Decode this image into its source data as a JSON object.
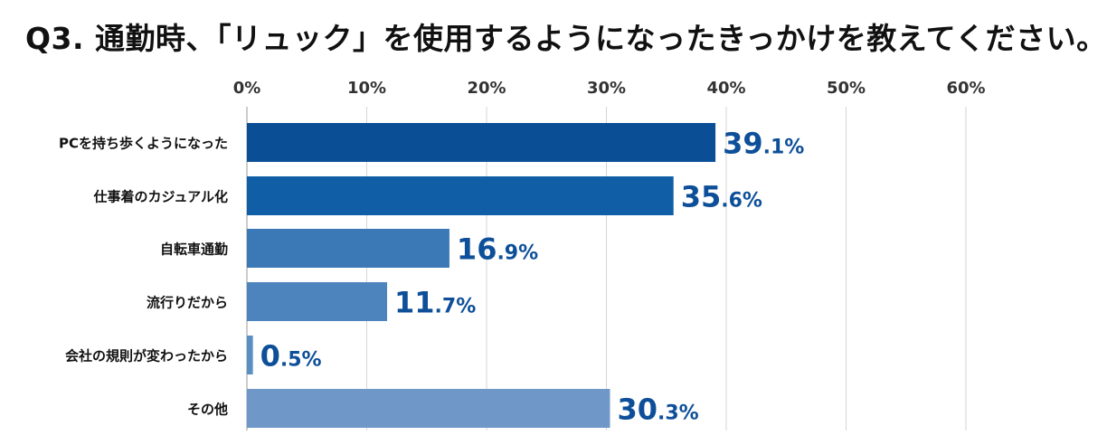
{
  "chart_data": {
    "type": "bar",
    "orientation": "horizontal",
    "title": "Q3. 通勤時、「リュック」を使用するようになったきっかけを教えてください。",
    "categories": [
      "PCを持ち歩くようになった",
      "仕事着のカジュアル化",
      "自転車通勤",
      "流行りだから",
      "会社の規則が変わったから",
      "その他"
    ],
    "values": [
      39.1,
      35.6,
      16.9,
      11.7,
      0.5,
      30.3
    ],
    "value_labels": [
      {
        "main": "39",
        "decimal": ".1%"
      },
      {
        "main": "35",
        "decimal": ".6%"
      },
      {
        "main": "16",
        "decimal": ".9%"
      },
      {
        "main": "11",
        "decimal": ".7%"
      },
      {
        "main": "0",
        "decimal": ".5%"
      },
      {
        "main": "30",
        "decimal": ".3%"
      }
    ],
    "xlim": [
      0,
      60
    ],
    "ticks": [
      0,
      10,
      20,
      30,
      40,
      50,
      60
    ],
    "tick_labels": [
      "0%",
      "10%",
      "20%",
      "30%",
      "40%",
      "50%",
      "60%"
    ],
    "grid": true,
    "colors": [
      "#0a4f96",
      "#0f5ea6",
      "#3a78b6",
      "#4d84bd",
      "#5a8fc4",
      "#6f98c9"
    ],
    "label_color": "#0d4f99"
  }
}
